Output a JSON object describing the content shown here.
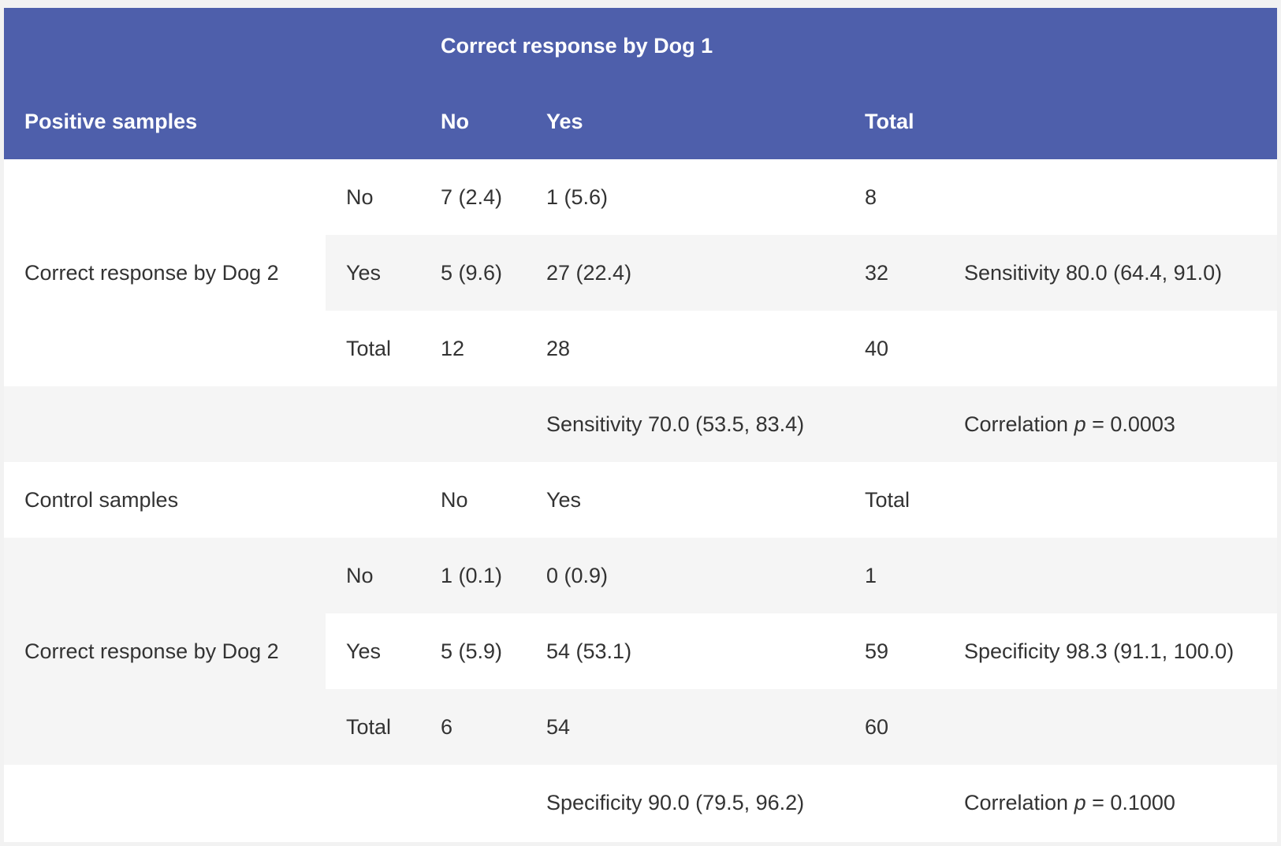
{
  "header": {
    "group_title": "Correct response by Dog 1",
    "row_label": "Positive samples",
    "col_no": "No",
    "col_yes": "Yes",
    "col_total": "Total"
  },
  "positive": {
    "row_group_label": "Correct response by Dog 2",
    "rows": [
      {
        "label": "No",
        "no": "7 (2.4)",
        "yes": "1 (5.6)",
        "total": "8",
        "note": ""
      },
      {
        "label": "Yes",
        "no": "5 (9.6)",
        "yes": "27 (22.4)",
        "total": "32",
        "note": "Sensitivity 80.0 (64.4, 91.0)"
      },
      {
        "label": "Total",
        "no": "12",
        "yes": "28",
        "total": "40",
        "note": ""
      }
    ],
    "summary_left": "Sensitivity 70.0 (53.5, 83.4)",
    "summary_right_prefix": "Correlation ",
    "summary_right_p": "p",
    "summary_right_value": " = 0.0003"
  },
  "control": {
    "section_label": "Control samples",
    "col_no": "No",
    "col_yes": "Yes",
    "col_total": "Total",
    "row_group_label": "Correct response by Dog 2",
    "rows": [
      {
        "label": "No",
        "no": "1 (0.1)",
        "yes": "0 (0.9)",
        "total": "1",
        "note": ""
      },
      {
        "label": "Yes",
        "no": "5 (5.9)",
        "yes": "54 (53.1)",
        "total": "59",
        "note": "Specificity 98.3 (91.1, 100.0)"
      },
      {
        "label": "Total",
        "no": "6",
        "yes": "54",
        "total": "60",
        "note": ""
      }
    ],
    "summary_left": "Specificity 90.0 (79.5, 96.2)",
    "summary_right_prefix": "Correlation ",
    "summary_right_p": "p",
    "summary_right_value": " = 0.1000"
  },
  "colors": {
    "header_bg": "#4e5fab",
    "stripe": "#f5f5f5",
    "text": "#333333"
  }
}
